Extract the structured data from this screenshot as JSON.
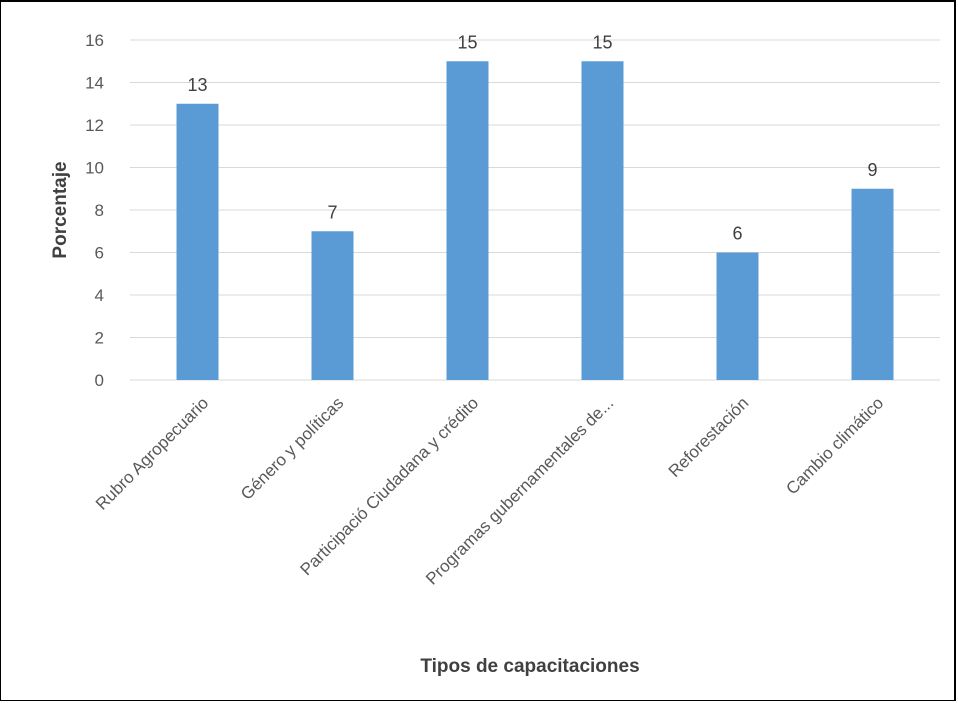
{
  "chart_data": {
    "type": "bar",
    "categories": [
      "Rubro Agropecuario",
      "Género y políticas",
      "Participació Ciudadana y crédito",
      "Programas gubernamentales de...",
      "Reforestación",
      "Cambio climático"
    ],
    "values": [
      13,
      7,
      15,
      15,
      6,
      9
    ],
    "data_labels": [
      "13",
      "7",
      "15",
      "15",
      "6",
      "9"
    ],
    "xlabel": "Tipos  de capacitaciones",
    "ylabel": "Porcentaje",
    "ylim": [
      0,
      16
    ],
    "yticks": [
      "0",
      "2",
      "4",
      "6",
      "8",
      "10",
      "12",
      "14",
      "16"
    ],
    "grid": true,
    "bar_color": "#5b9bd5",
    "grid_color": "#d9d9d9"
  }
}
